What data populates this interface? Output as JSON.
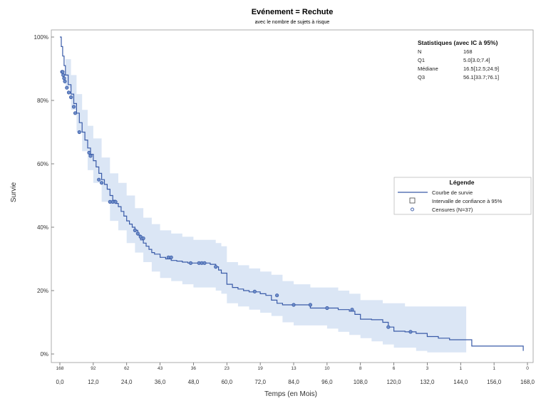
{
  "chart_data": {
    "type": "line",
    "title": "Evénement = Rechute",
    "subtitle": "avec le nombre de sujets à risque",
    "xlabel": "Temps (en Mois)",
    "ylabel": "Survie",
    "xlim": [
      0,
      168
    ],
    "ylim": [
      0,
      1
    ],
    "x_ticks": [
      "0,0",
      "12,0",
      "24,0",
      "36,0",
      "48,0",
      "60,0",
      "72,0",
      "84,0",
      "96,0",
      "108,0",
      "120,0",
      "132,0",
      "144,0",
      "156,0",
      "168,0"
    ],
    "x_tick_values": [
      0,
      12,
      24,
      36,
      48,
      60,
      72,
      84,
      96,
      108,
      120,
      132,
      144,
      156,
      168
    ],
    "y_ticks": [
      "0%",
      "20%",
      "40%",
      "60%",
      "80%",
      "100%"
    ],
    "y_tick_values": [
      0,
      0.2,
      0.4,
      0.6,
      0.8,
      1.0
    ],
    "grid": false,
    "at_risk": {
      "times": [
        0,
        12,
        24,
        36,
        48,
        60,
        72,
        84,
        96,
        108,
        120,
        132,
        144,
        156,
        168
      ],
      "counts": [
        "168",
        "92",
        "62",
        "43",
        "36",
        "23",
        "19",
        "13",
        "10",
        "8",
        "6",
        "3",
        "1",
        "1",
        "0"
      ]
    },
    "series": [
      {
        "name": "Courbe de survie",
        "color": "#3a5ba8",
        "x": [
          0,
          0.5,
          1,
          1.5,
          2,
          3,
          4,
          5,
          6,
          7,
          8,
          9,
          10,
          11,
          12,
          13,
          14,
          15,
          16,
          17,
          18,
          19,
          20,
          21,
          22,
          23,
          24,
          25,
          26,
          27,
          28,
          29,
          30,
          31,
          32,
          33,
          34,
          36,
          38,
          40,
          42,
          44,
          46,
          48,
          50,
          52,
          54,
          56,
          57,
          58,
          60,
          62,
          64,
          66,
          68,
          72,
          74,
          76,
          78,
          80,
          84,
          88,
          90,
          94,
          96,
          100,
          104,
          106,
          108,
          112,
          116,
          118,
          120,
          124,
          128,
          132,
          136,
          140,
          148,
          155,
          160,
          165,
          166.5
        ],
        "y": [
          1.0,
          0.97,
          0.94,
          0.91,
          0.88,
          0.85,
          0.82,
          0.79,
          0.76,
          0.73,
          0.7,
          0.675,
          0.65,
          0.63,
          0.61,
          0.59,
          0.57,
          0.55,
          0.535,
          0.52,
          0.5,
          0.485,
          0.475,
          0.465,
          0.45,
          0.435,
          0.42,
          0.41,
          0.4,
          0.39,
          0.375,
          0.36,
          0.35,
          0.34,
          0.33,
          0.32,
          0.315,
          0.305,
          0.3,
          0.295,
          0.293,
          0.29,
          0.287,
          0.287,
          0.287,
          0.287,
          0.283,
          0.275,
          0.265,
          0.255,
          0.22,
          0.21,
          0.205,
          0.2,
          0.196,
          0.19,
          0.185,
          0.17,
          0.16,
          0.155,
          0.155,
          0.155,
          0.145,
          0.145,
          0.145,
          0.14,
          0.135,
          0.125,
          0.11,
          0.108,
          0.1,
          0.085,
          0.072,
          0.07,
          0.065,
          0.055,
          0.05,
          0.045,
          0.025,
          0.025,
          0.025,
          0.025,
          0.01
        ]
      }
    ],
    "confidence_band": {
      "name": "Intervalle de confiance à 95%",
      "color": "#dbe6f5",
      "x": [
        0,
        2,
        4,
        6,
        8,
        10,
        12,
        15,
        18,
        21,
        24,
        27,
        30,
        33,
        36,
        40,
        44,
        48,
        52,
        56,
        58,
        60,
        64,
        68,
        72,
        76,
        80,
        84,
        90,
        96,
        100,
        104,
        108,
        112,
        116,
        120,
        124,
        128,
        132,
        136,
        140,
        146
      ],
      "lower": [
        1.0,
        0.84,
        0.77,
        0.7,
        0.64,
        0.58,
        0.54,
        0.48,
        0.42,
        0.39,
        0.35,
        0.32,
        0.29,
        0.26,
        0.24,
        0.23,
        0.22,
        0.21,
        0.21,
        0.2,
        0.19,
        0.16,
        0.15,
        0.14,
        0.13,
        0.12,
        0.1,
        0.09,
        0.09,
        0.08,
        0.07,
        0.06,
        0.05,
        0.04,
        0.03,
        0.02,
        0.02,
        0.01,
        0.005,
        0.005,
        0.005,
        0.005
      ],
      "upper": [
        1.0,
        0.93,
        0.88,
        0.82,
        0.77,
        0.72,
        0.68,
        0.62,
        0.57,
        0.54,
        0.5,
        0.46,
        0.43,
        0.41,
        0.39,
        0.38,
        0.37,
        0.36,
        0.36,
        0.35,
        0.34,
        0.29,
        0.28,
        0.27,
        0.26,
        0.25,
        0.23,
        0.22,
        0.21,
        0.21,
        0.2,
        0.19,
        0.17,
        0.17,
        0.16,
        0.16,
        0.15,
        0.15,
        0.15,
        0.15,
        0.15,
        0.15
      ]
    },
    "censored": {
      "name": "Censures (N=37)",
      "x": [
        0.8,
        1.0,
        1.2,
        1.5,
        1.8,
        2.5,
        3.2,
        4.0,
        5.0,
        5.5,
        7.0,
        10.5,
        11.0,
        14.0,
        15.0,
        18.0,
        19.0,
        20.0,
        27.0,
        28.0,
        29.0,
        30.0,
        39.0,
        40.0,
        47.0,
        50.0,
        51.0,
        52.0,
        56.0,
        70.0,
        78.0,
        84.0,
        90.0,
        96.0,
        105.0,
        118.0,
        126.0
      ],
      "y": [
        0.89,
        0.89,
        0.88,
        0.87,
        0.86,
        0.84,
        0.825,
        0.81,
        0.78,
        0.76,
        0.7,
        0.635,
        0.625,
        0.55,
        0.54,
        0.48,
        0.48,
        0.48,
        0.39,
        0.38,
        0.37,
        0.365,
        0.305,
        0.305,
        0.287,
        0.287,
        0.287,
        0.287,
        0.275,
        0.197,
        0.185,
        0.155,
        0.155,
        0.145,
        0.14,
        0.085,
        0.07
      ]
    },
    "statistics": {
      "title": "Statistiques (avec IC à 95%)",
      "rows": [
        {
          "label": "N",
          "value": "168"
        },
        {
          "label": "Q1",
          "value": "5.0[3.0;7.4]"
        },
        {
          "label": "Médiane",
          "value": "16.5[12.5;24.9]"
        },
        {
          "label": "Q3",
          "value": "56.1[33.7;76.1]"
        }
      ]
    },
    "legend": {
      "title": "Légende",
      "position": "right",
      "entries": [
        {
          "symbol": "line",
          "label": "Courbe de survie"
        },
        {
          "symbol": "square",
          "label": "Intervalle de confiance à 95%"
        },
        {
          "symbol": "circle",
          "label": "Censures (N=37)"
        }
      ]
    }
  }
}
